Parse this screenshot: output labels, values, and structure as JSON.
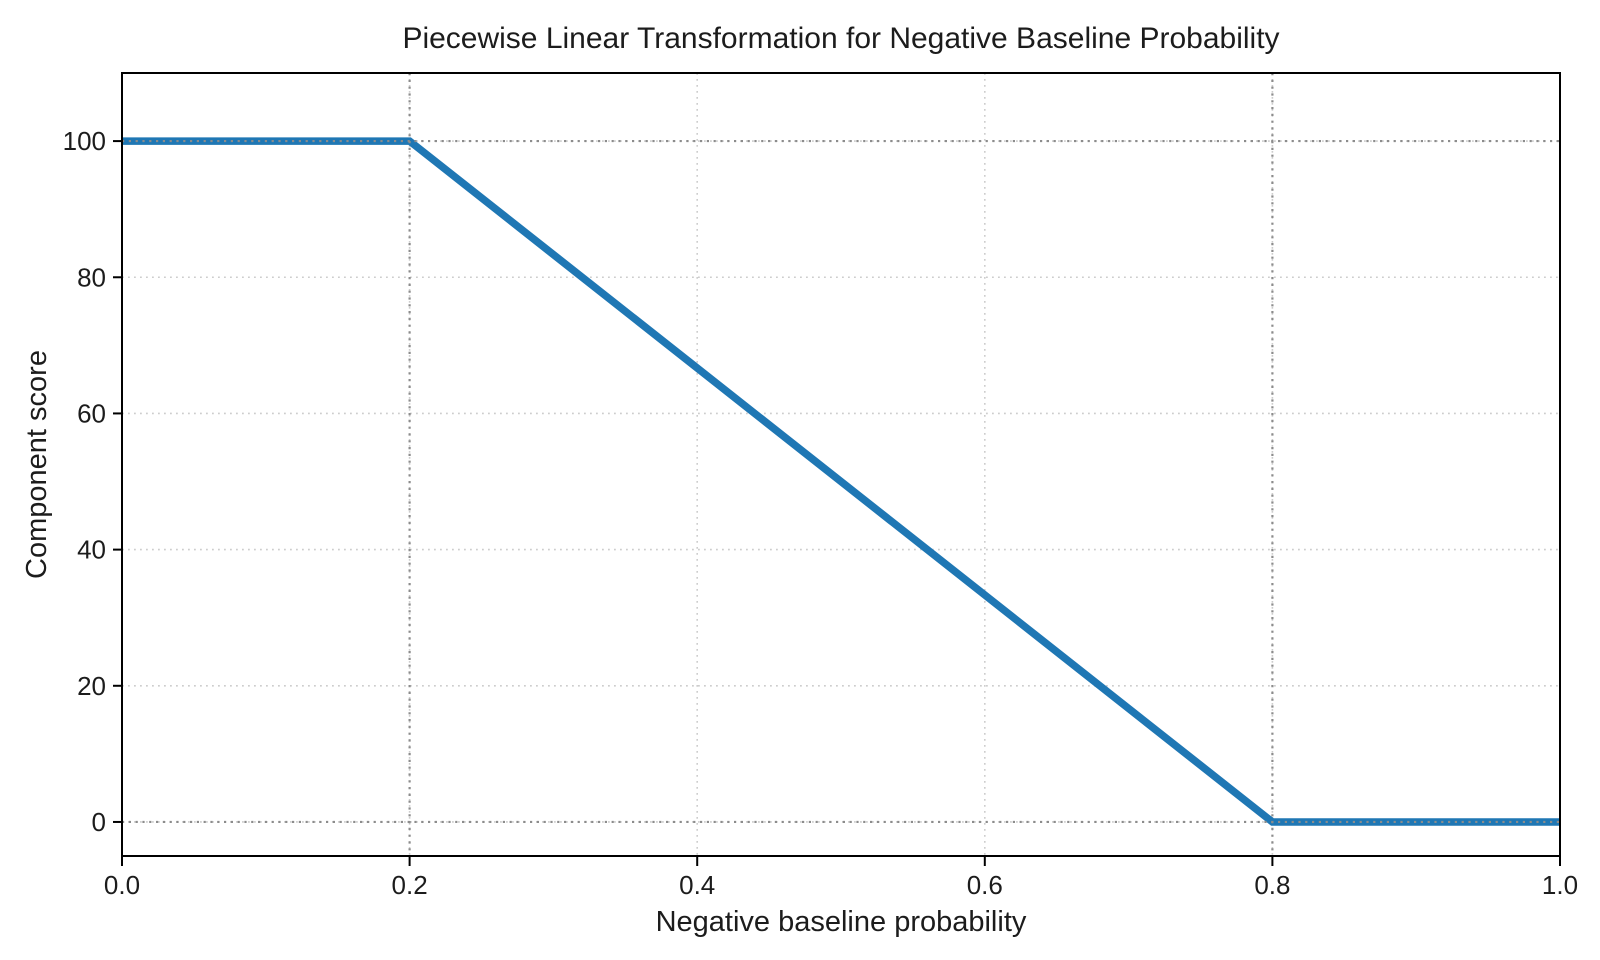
{
  "figure": {
    "background": "#ffffff"
  },
  "chart_data": {
    "type": "line",
    "title": "Piecewise Linear Transformation for Negative Baseline Probability",
    "xlabel": "Negative baseline probability",
    "ylabel": "Component score",
    "xlim": [
      0.0,
      1.0
    ],
    "ylim": [
      -5,
      110
    ],
    "x_ticks": [
      0.0,
      0.2,
      0.4,
      0.6,
      0.8,
      1.0
    ],
    "x_tick_labels": [
      "0.0",
      "0.2",
      "0.4",
      "0.6",
      "0.8",
      "1.0"
    ],
    "y_ticks": [
      0,
      20,
      40,
      60,
      80,
      100
    ],
    "y_tick_labels": [
      "0",
      "20",
      "40",
      "60",
      "80",
      "100"
    ],
    "grid": {
      "on": true,
      "linestyle": "dotted",
      "color": "#cdcdcd"
    },
    "legend": "none",
    "series": [
      {
        "name": "component-score-transform",
        "color": "#1f77b4",
        "linewidth": 7.5,
        "points": [
          [
            0.0,
            100
          ],
          [
            0.2,
            100
          ],
          [
            0.8,
            0
          ],
          [
            1.0,
            0
          ]
        ]
      }
    ],
    "reference_lines": {
      "color": "#8c8c8c",
      "linestyle": "dotted",
      "linewidth": 2.2,
      "vertical_x": [
        0.2,
        0.8
      ],
      "horizontal_y": [
        100,
        0
      ]
    },
    "axes": {
      "frame": "full",
      "spine_color": "#000000",
      "tick_color": "#000000",
      "text_color": "#1c1c1c"
    }
  }
}
